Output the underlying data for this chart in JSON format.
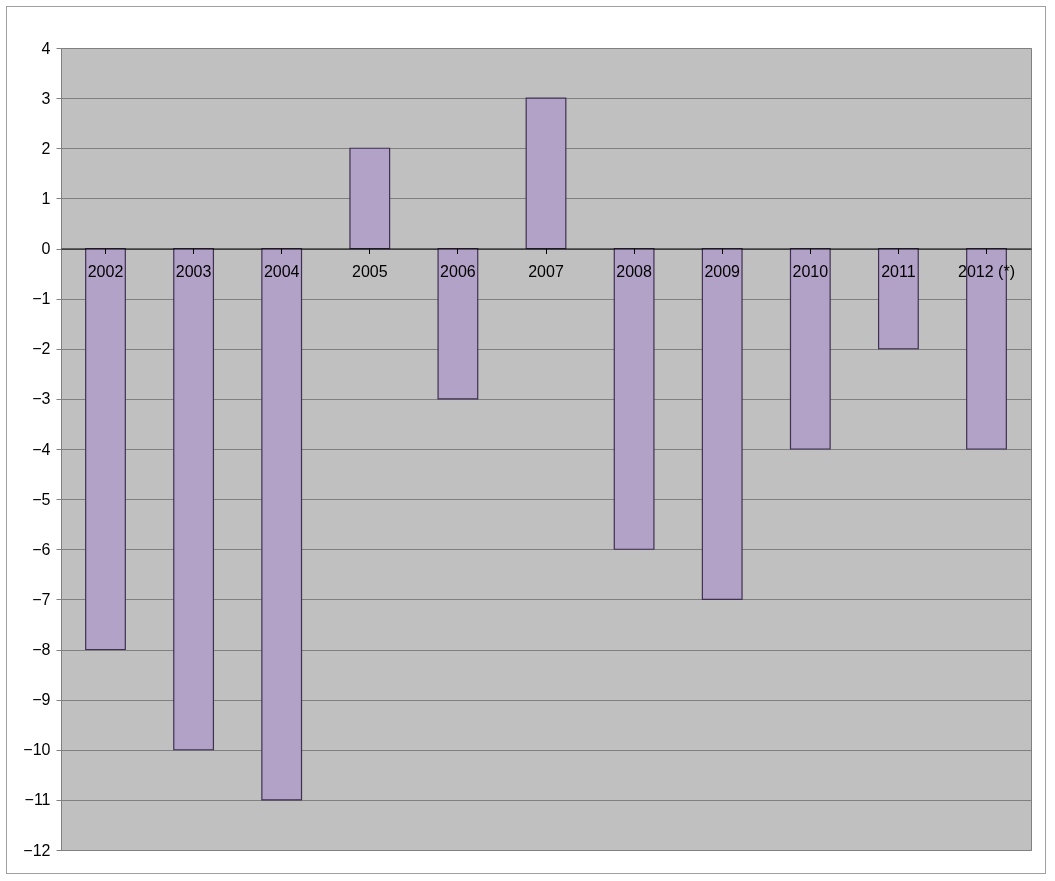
{
  "chart_data": {
    "type": "bar",
    "categories": [
      "2002",
      "2003",
      "2004",
      "2005",
      "2006",
      "2007",
      "2008",
      "2009",
      "2010",
      "2011",
      "2012 (*)"
    ],
    "values": [
      -8,
      -10,
      -11,
      2,
      -3,
      3,
      -6,
      -7,
      -4,
      -2,
      -4
    ],
    "color": "#b3a2c7",
    "ylim": [
      -12,
      4
    ],
    "yticks": [
      -12,
      -11,
      -10,
      -9,
      -8,
      -7,
      -6,
      -5,
      -4,
      -3,
      -2,
      -1,
      0,
      1,
      2,
      3,
      4
    ],
    "grid": "y",
    "legend": false
  }
}
